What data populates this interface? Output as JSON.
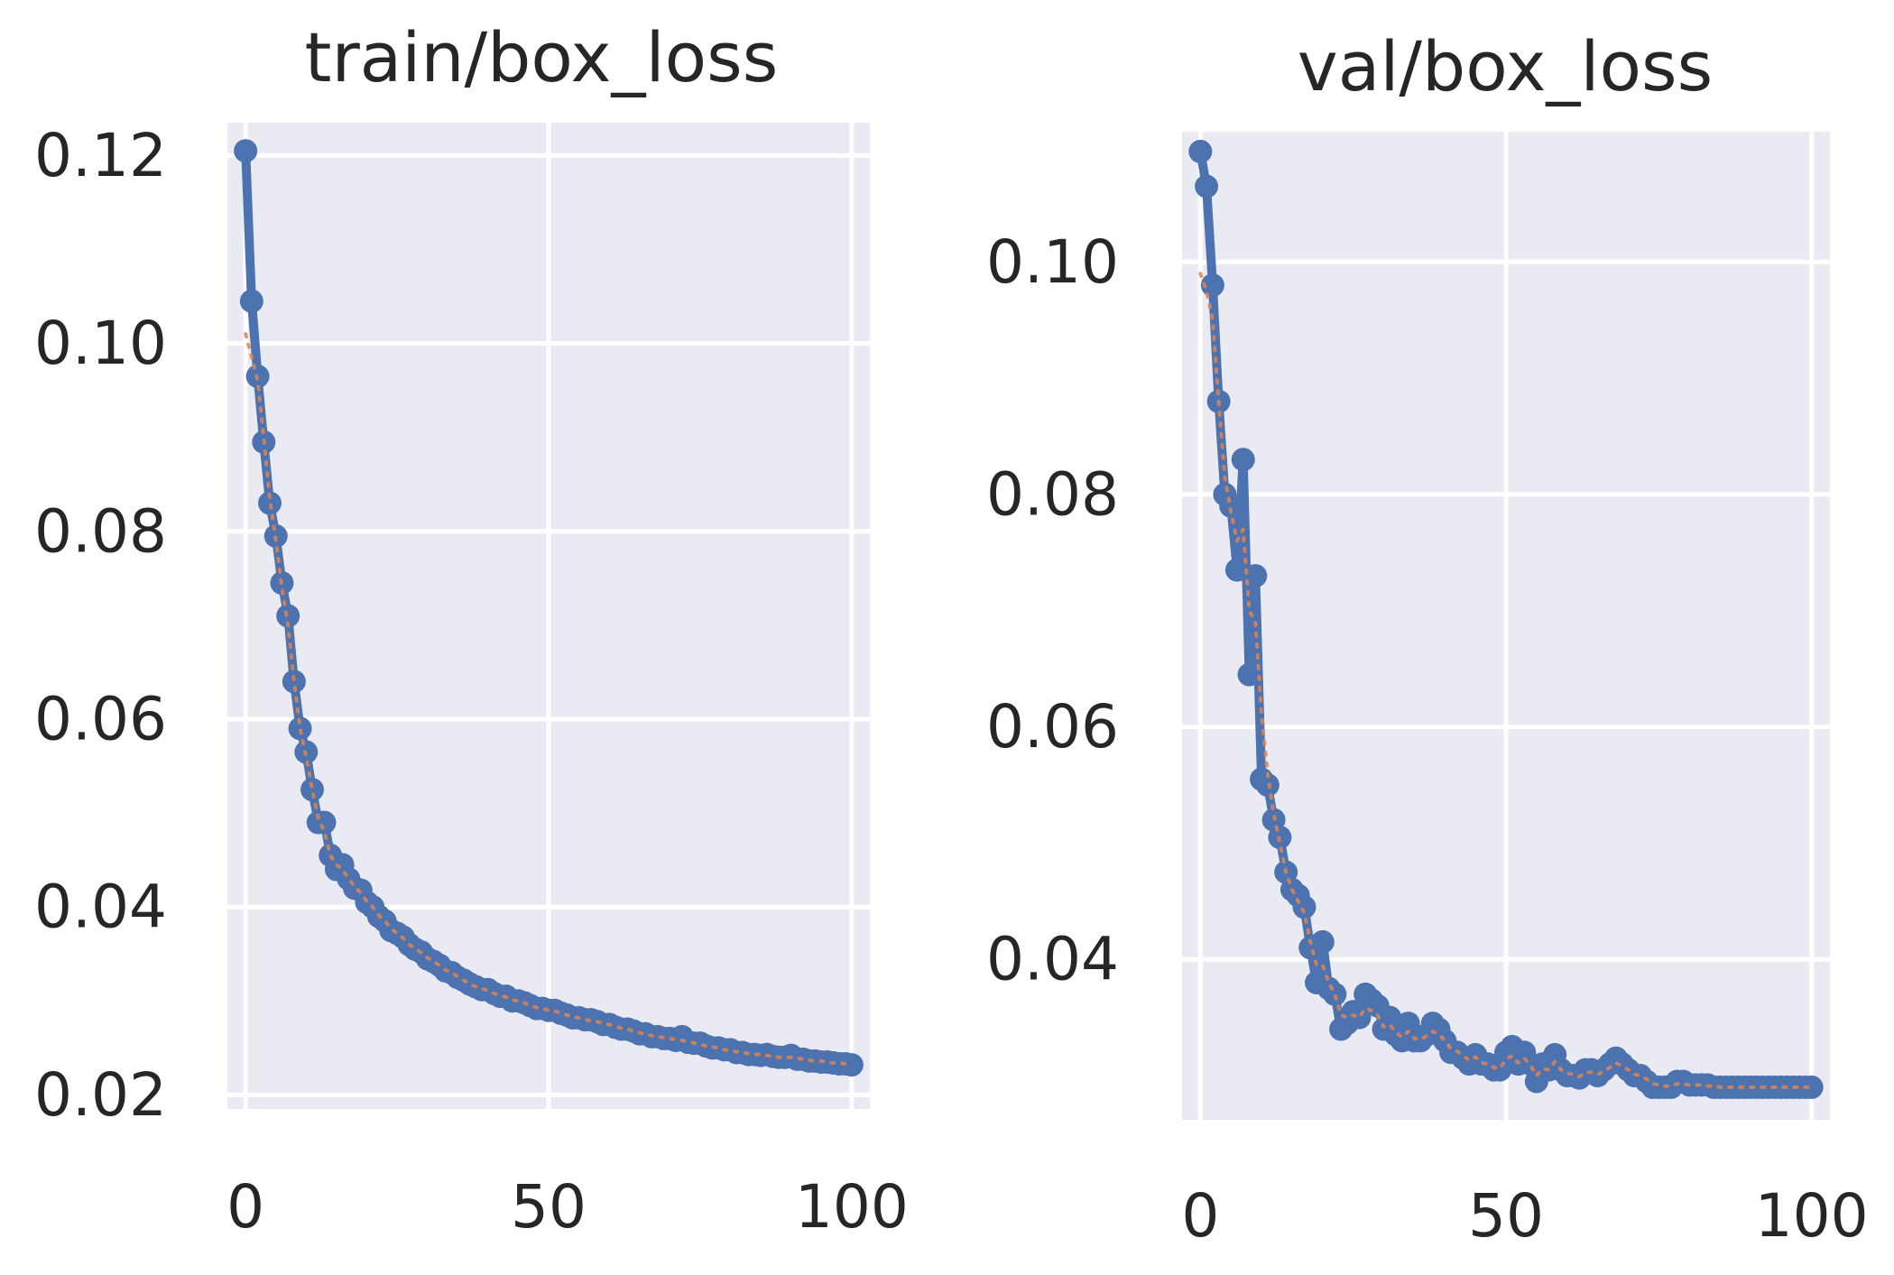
{
  "chart_data": [
    {
      "type": "line",
      "title": "train/box_loss",
      "xlabel": "",
      "ylabel": "",
      "xlim": [
        -3,
        103
      ],
      "ylim": [
        0.0185,
        0.1235
      ],
      "xticks": [
        0,
        50,
        100
      ],
      "xtick_labels": [
        "0",
        "50",
        "100"
      ],
      "yticks": [
        0.02,
        0.04,
        0.06,
        0.08,
        0.1,
        0.12
      ],
      "ytick_labels": [
        "0.02",
        "0.04",
        "0.06",
        "0.08",
        "0.10",
        "0.12"
      ],
      "grid": true,
      "legend": "none",
      "colors": {
        "results": "#4c72b0",
        "smooth": "#dd8452"
      },
      "x": [
        0,
        1,
        2,
        3,
        4,
        5,
        6,
        7,
        8,
        9,
        10,
        11,
        12,
        13,
        14,
        15,
        16,
        17,
        18,
        19,
        20,
        21,
        22,
        23,
        24,
        25,
        26,
        27,
        28,
        29,
        30,
        31,
        32,
        33,
        34,
        35,
        36,
        37,
        38,
        39,
        40,
        41,
        42,
        43,
        44,
        45,
        46,
        47,
        48,
        49,
        50,
        51,
        52,
        53,
        54,
        55,
        56,
        57,
        58,
        59,
        60,
        61,
        62,
        63,
        64,
        65,
        66,
        67,
        68,
        69,
        70,
        71,
        72,
        73,
        74,
        75,
        76,
        77,
        78,
        79,
        80,
        81,
        82,
        83,
        84,
        85,
        86,
        87,
        88,
        89,
        90,
        91,
        92,
        93,
        94,
        95,
        96,
        97,
        98,
        99,
        100
      ],
      "series": [
        {
          "style": "results",
          "values": [
            0.1205,
            0.1045,
            0.0965,
            0.0895,
            0.083,
            0.0795,
            0.0745,
            0.071,
            0.064,
            0.059,
            0.0565,
            0.0525,
            0.049,
            0.049,
            0.0455,
            0.044,
            0.0445,
            0.043,
            0.042,
            0.0418,
            0.0405,
            0.04,
            0.039,
            0.0385,
            0.0375,
            0.0372,
            0.0368,
            0.036,
            0.0355,
            0.0352,
            0.0345,
            0.0342,
            0.0338,
            0.0332,
            0.033,
            0.0325,
            0.0322,
            0.0318,
            0.0315,
            0.0312,
            0.0312,
            0.0308,
            0.0305,
            0.0305,
            0.03,
            0.03,
            0.0298,
            0.0295,
            0.0292,
            0.0292,
            0.029,
            0.029,
            0.0287,
            0.0285,
            0.0282,
            0.0282,
            0.028,
            0.028,
            0.0278,
            0.0275,
            0.0275,
            0.0272,
            0.027,
            0.027,
            0.0268,
            0.0265,
            0.0265,
            0.0262,
            0.0262,
            0.026,
            0.026,
            0.0258,
            0.0262,
            0.0256,
            0.0255,
            0.0255,
            0.0252,
            0.025,
            0.025,
            0.0248,
            0.0248,
            0.0245,
            0.0245,
            0.0243,
            0.0243,
            0.0242,
            0.0243,
            0.0241,
            0.024,
            0.024,
            0.0242,
            0.0238,
            0.0238,
            0.0236,
            0.0236,
            0.0235,
            0.0235,
            0.0234,
            0.0233,
            0.0233,
            0.0232
          ]
        },
        {
          "style": "smooth",
          "values": [
            0.101,
            0.0985,
            0.096,
            0.09,
            0.0835,
            0.079,
            0.074,
            0.07,
            0.064,
            0.059,
            0.056,
            0.0525,
            0.0495,
            0.048,
            0.0455,
            0.0445,
            0.044,
            0.043,
            0.0422,
            0.0415,
            0.0406,
            0.04,
            0.0391,
            0.0385,
            0.0377,
            0.0372,
            0.0367,
            0.036,
            0.0356,
            0.0351,
            0.0346,
            0.0342,
            0.0338,
            0.0333,
            0.033,
            0.0326,
            0.0322,
            0.0318,
            0.0315,
            0.0313,
            0.0311,
            0.0308,
            0.0306,
            0.0304,
            0.0301,
            0.03,
            0.0298,
            0.0295,
            0.0293,
            0.0292,
            0.029,
            0.0289,
            0.0287,
            0.0285,
            0.0283,
            0.0282,
            0.028,
            0.0279,
            0.0278,
            0.0276,
            0.0275,
            0.0273,
            0.0271,
            0.027,
            0.0268,
            0.0266,
            0.0265,
            0.0263,
            0.0262,
            0.0261,
            0.026,
            0.0259,
            0.0258,
            0.0257,
            0.0255,
            0.0254,
            0.0252,
            0.0251,
            0.025,
            0.0248,
            0.0247,
            0.0246,
            0.0245,
            0.0244,
            0.0243,
            0.0243,
            0.0242,
            0.0241,
            0.024,
            0.024,
            0.024,
            0.0239,
            0.0238,
            0.0237,
            0.0236,
            0.0236,
            0.0235,
            0.0234,
            0.0234,
            0.0233,
            0.0233
          ]
        }
      ]
    },
    {
      "type": "line",
      "title": "val/box_loss",
      "xlabel": "",
      "ylabel": "",
      "xlim": [
        -3,
        103
      ],
      "ylim": [
        0.0262,
        0.1112
      ],
      "xticks": [
        0,
        50,
        100
      ],
      "xtick_labels": [
        "0",
        "50",
        "100"
      ],
      "yticks": [
        0.04,
        0.06,
        0.08,
        0.1
      ],
      "ytick_labels": [
        "0.04",
        "0.06",
        "0.08",
        "0.10"
      ],
      "grid": true,
      "legend": "none",
      "colors": {
        "results": "#4c72b0",
        "smooth": "#dd8452"
      },
      "x": [
        0,
        1,
        2,
        3,
        4,
        5,
        6,
        7,
        8,
        9,
        10,
        11,
        12,
        13,
        14,
        15,
        16,
        17,
        18,
        19,
        20,
        21,
        22,
        23,
        24,
        25,
        26,
        27,
        28,
        29,
        30,
        31,
        32,
        33,
        34,
        35,
        36,
        37,
        38,
        39,
        40,
        41,
        42,
        43,
        44,
        45,
        46,
        47,
        48,
        49,
        50,
        51,
        52,
        53,
        54,
        55,
        56,
        57,
        58,
        59,
        60,
        61,
        62,
        63,
        64,
        65,
        66,
        67,
        68,
        69,
        70,
        71,
        72,
        73,
        74,
        75,
        76,
        77,
        78,
        79,
        80,
        81,
        82,
        83,
        84,
        85,
        86,
        87,
        88,
        89,
        90,
        91,
        92,
        93,
        94,
        95,
        96,
        97,
        98,
        99,
        100
      ],
      "series": [
        {
          "style": "results",
          "values": [
            0.1095,
            0.1065,
            0.098,
            0.088,
            0.08,
            0.079,
            0.0735,
            0.083,
            0.0645,
            0.073,
            0.0555,
            0.055,
            0.052,
            0.0505,
            0.0475,
            0.046,
            0.0455,
            0.0445,
            0.041,
            0.038,
            0.0415,
            0.0375,
            0.037,
            0.034,
            0.0345,
            0.0355,
            0.035,
            0.037,
            0.0365,
            0.036,
            0.034,
            0.035,
            0.0335,
            0.033,
            0.0345,
            0.033,
            0.033,
            0.0335,
            0.0345,
            0.034,
            0.033,
            0.032,
            0.032,
            0.0315,
            0.031,
            0.0318,
            0.031,
            0.031,
            0.0305,
            0.0305,
            0.032,
            0.0325,
            0.031,
            0.032,
            0.031,
            0.0295,
            0.031,
            0.0305,
            0.0318,
            0.0305,
            0.03,
            0.03,
            0.0298,
            0.0305,
            0.0305,
            0.03,
            0.0305,
            0.031,
            0.0315,
            0.031,
            0.0305,
            0.03,
            0.03,
            0.0295,
            0.029,
            0.029,
            0.029,
            0.029,
            0.0295,
            0.0295,
            0.0292,
            0.0292,
            0.0292,
            0.0292,
            0.029,
            0.029,
            0.029,
            0.029,
            0.029,
            0.029,
            0.029,
            0.029,
            0.029,
            0.029,
            0.029,
            0.029,
            0.029,
            0.029,
            0.029,
            0.029,
            0.029
          ]
        },
        {
          "style": "smooth",
          "values": [
            0.099,
            0.0975,
            0.095,
            0.088,
            0.0815,
            0.0785,
            0.076,
            0.077,
            0.07,
            0.069,
            0.061,
            0.056,
            0.0525,
            0.05,
            0.0475,
            0.046,
            0.045,
            0.044,
            0.0415,
            0.0395,
            0.0395,
            0.038,
            0.037,
            0.0352,
            0.035,
            0.0352,
            0.035,
            0.0358,
            0.0356,
            0.0352,
            0.0342,
            0.0344,
            0.0337,
            0.0333,
            0.0338,
            0.0332,
            0.0331,
            0.0334,
            0.0338,
            0.0336,
            0.033,
            0.0323,
            0.0321,
            0.0317,
            0.0313,
            0.0316,
            0.0311,
            0.031,
            0.0307,
            0.0306,
            0.0314,
            0.0317,
            0.0311,
            0.0315,
            0.0309,
            0.03,
            0.0306,
            0.0305,
            0.0312,
            0.0305,
            0.0302,
            0.0301,
            0.0299,
            0.0303,
            0.0303,
            0.0301,
            0.0304,
            0.0307,
            0.0311,
            0.0308,
            0.0305,
            0.0301,
            0.03,
            0.0297,
            0.0293,
            0.0292,
            0.0291,
            0.0291,
            0.0293,
            0.0293,
            0.0292,
            0.0292,
            0.0292,
            0.0291,
            0.0291,
            0.029,
            0.029,
            0.029,
            0.029,
            0.029,
            0.029,
            0.029,
            0.029,
            0.029,
            0.029,
            0.029,
            0.029,
            0.029,
            0.029,
            0.029,
            0.029
          ]
        }
      ]
    }
  ]
}
